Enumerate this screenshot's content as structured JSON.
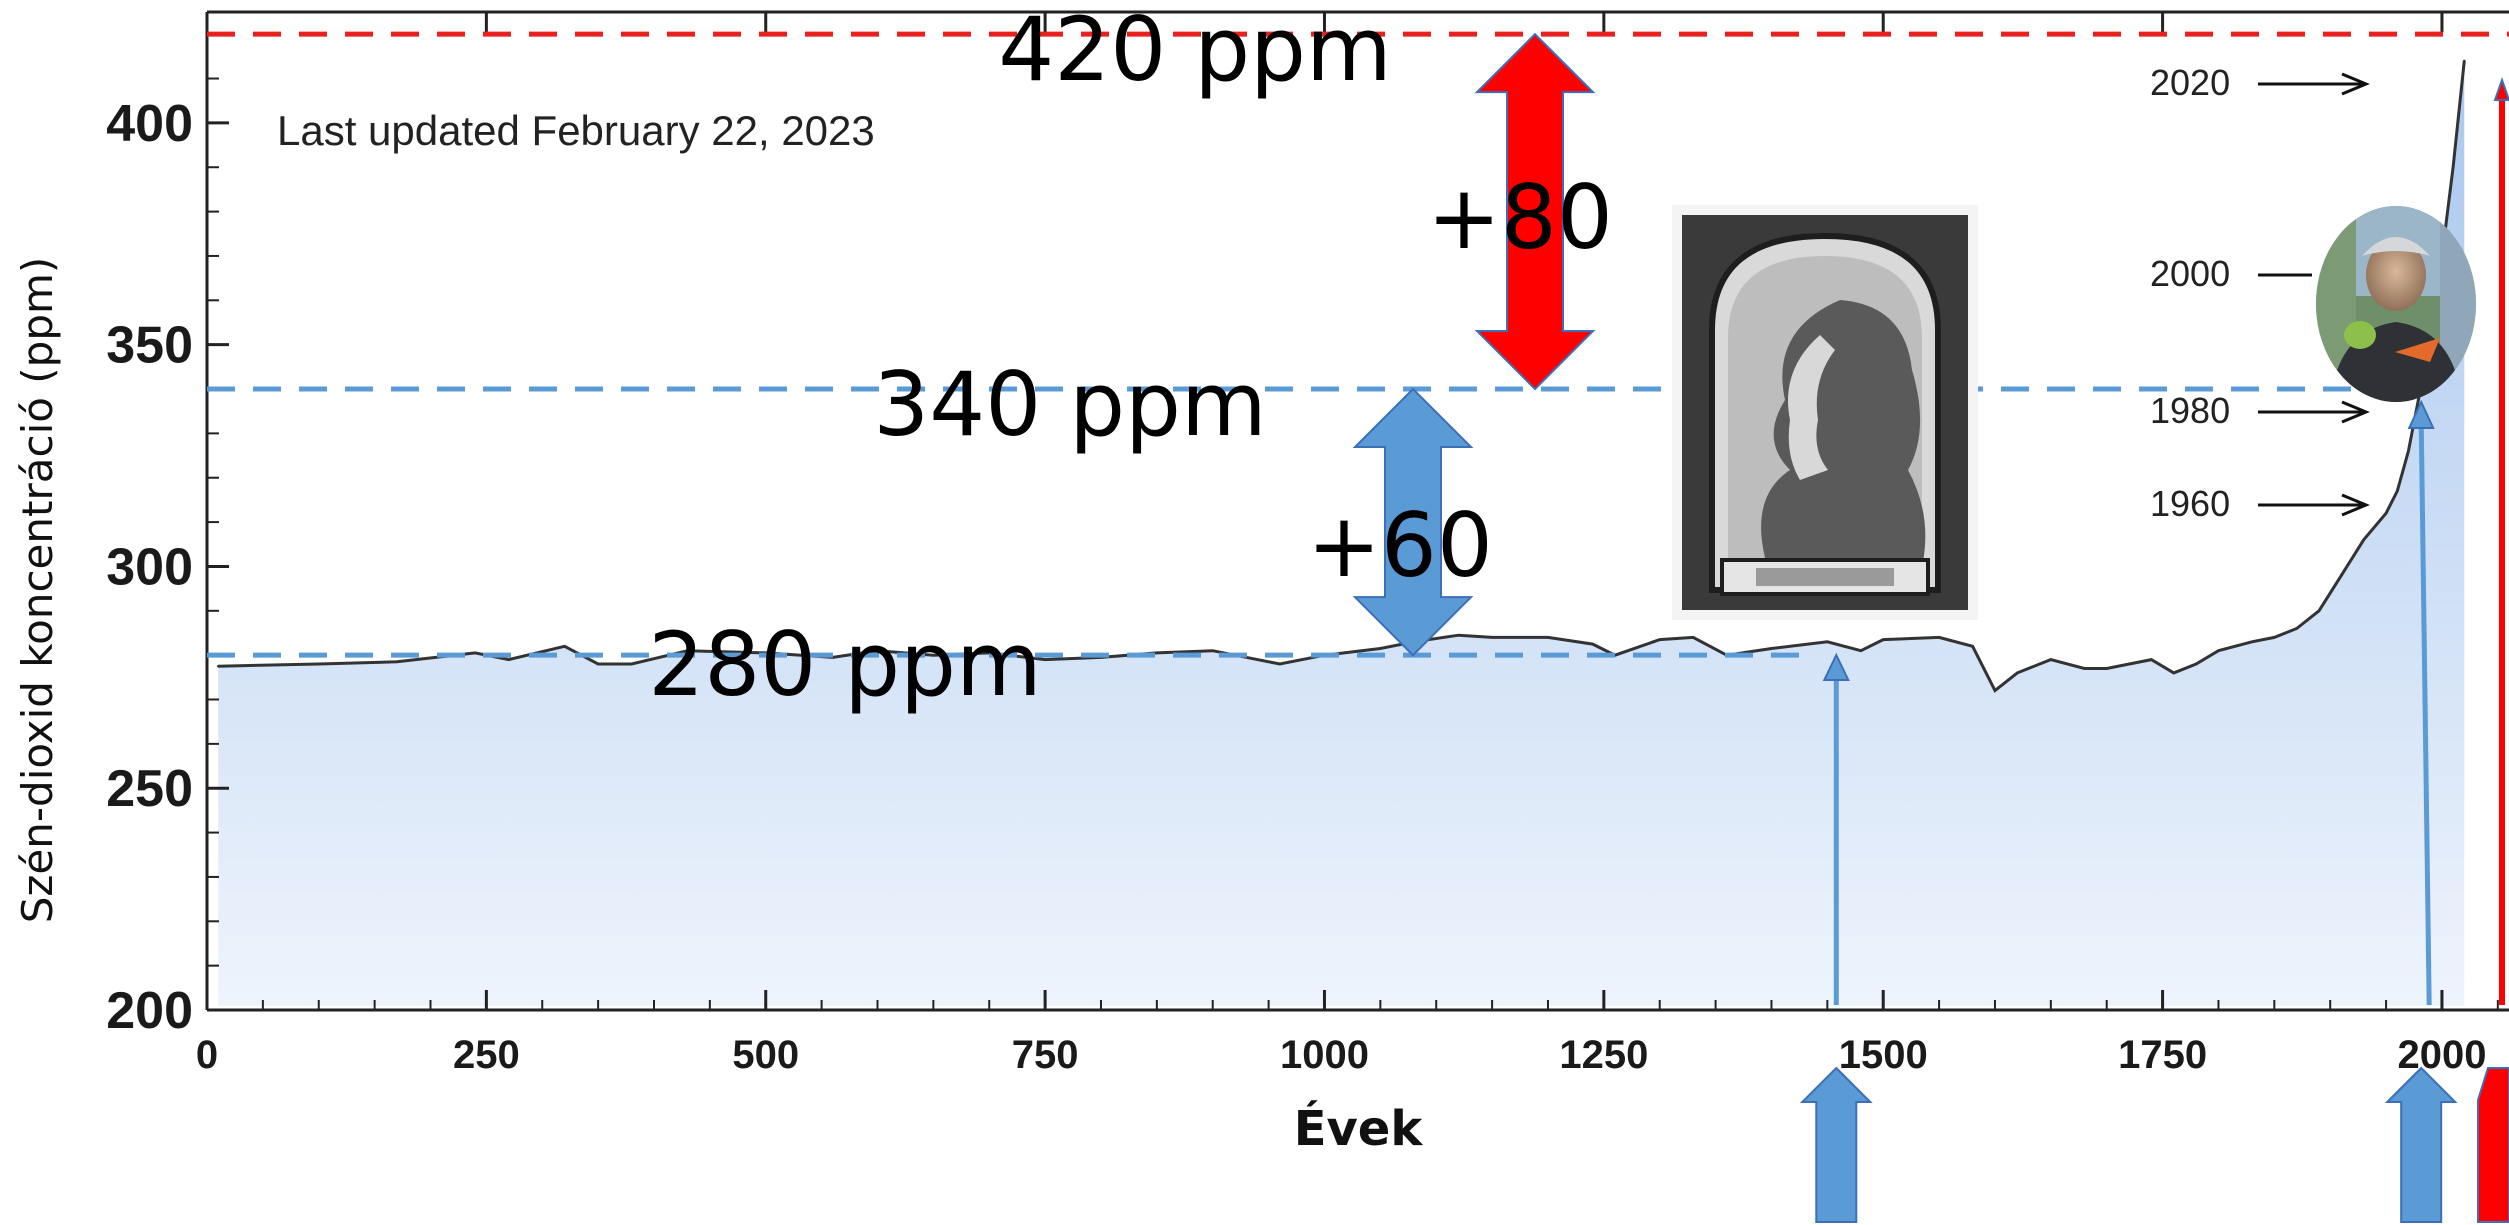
{
  "chart_data": {
    "type": "area",
    "title": "",
    "subtitle": "Last updated February 22, 2023",
    "xlabel": "Évek",
    "ylabel": "Szén-dioxid koncentráció (ppm)",
    "xlim": [
      0,
      2060
    ],
    "ylim": [
      200,
      425
    ],
    "x_ticks": [
      0,
      250,
      500,
      750,
      1000,
      1250,
      1500,
      1750,
      2000
    ],
    "y_ticks": [
      200,
      250,
      300,
      350,
      400
    ],
    "grid": false,
    "series": [
      {
        "x": [
          10,
          100,
          170,
          240,
          270,
          320,
          350,
          380,
          430,
          500,
          560,
          600,
          650,
          700,
          750,
          800,
          850,
          900,
          960,
          1000,
          1050,
          1080,
          1120,
          1150,
          1200,
          1240,
          1260,
          1300,
          1330,
          1360,
          1400,
          1450,
          1480,
          1500,
          1550,
          1580,
          1600,
          1620,
          1650,
          1680,
          1700,
          1740,
          1760,
          1780,
          1800,
          1830,
          1850,
          1870,
          1890,
          1910,
          1930,
          1950,
          1960,
          1970,
          1980,
          1990,
          2000,
          2010,
          2020
        ],
        "values": [
          277.5,
          278,
          278.5,
          280.5,
          279,
          282,
          278,
          278,
          281,
          280.5,
          279.5,
          281,
          280,
          280.5,
          279,
          279.5,
          280.5,
          281,
          278,
          280,
          281.5,
          283,
          284.5,
          284,
          284,
          282.5,
          280,
          283.5,
          284,
          280,
          281.5,
          283,
          281,
          283.5,
          284,
          282,
          272,
          276,
          279,
          277,
          277,
          279,
          276,
          278,
          281,
          283,
          284,
          286,
          290,
          298,
          306,
          312,
          317,
          326,
          339,
          354,
          370,
          390,
          414
        ]
      }
    ],
    "annotations": {
      "note": "Last updated February 22, 2023",
      "levels": [
        {
          "label": "420 ppm",
          "value": 420,
          "color": "#e8201e"
        },
        {
          "label": "340 ppm",
          "value": 340,
          "color": "#5b9bd5"
        },
        {
          "label": "280 ppm",
          "value": 280,
          "color": "#5b9bd5"
        }
      ],
      "diffs": [
        {
          "label": "+80",
          "from": 340,
          "to": 420,
          "color": "#ff0000"
        },
        {
          "label": "+60",
          "from": 280,
          "to": 340,
          "color": "#5b9bd5"
        }
      ],
      "year_markers": [
        "2020",
        "2000",
        "1980",
        "1960"
      ],
      "event_years": [
        1458,
        1985,
        2060
      ]
    }
  },
  "colors": {
    "fill_top": "#a9c7ee",
    "fill_bottom": "#eef4fc",
    "line": "#333333",
    "blue": "#5b9bd5",
    "red": "#ff0000"
  }
}
